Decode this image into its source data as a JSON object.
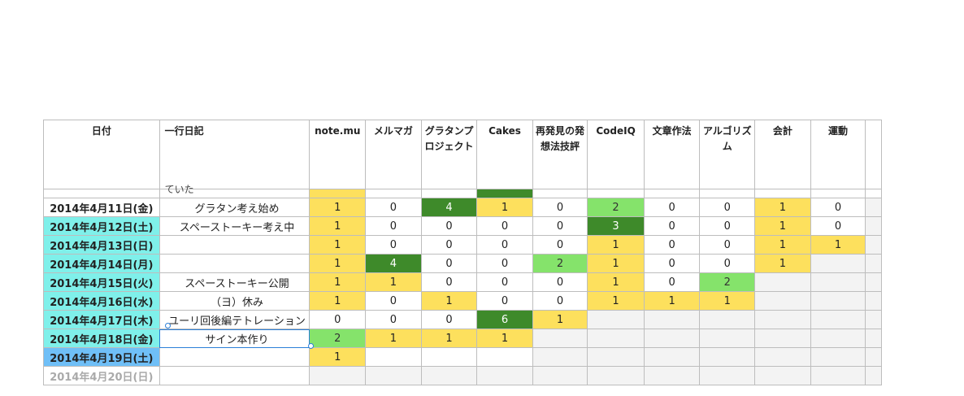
{
  "headers": [
    "日付",
    "一行日記",
    "note.mu",
    "メルマガ",
    "グラタンプロジェクト",
    "Cakes",
    "再発見の発想法技評",
    "CodeIQ",
    "文章作法",
    "アルゴリズム",
    "会計",
    "運動"
  ],
  "partial_row_text": "ていた",
  "rows": [
    {
      "date": "2014年4月11日(金)",
      "diary": "グラタン考え始め",
      "vals": [
        "1",
        "0",
        "4",
        "1",
        "0",
        "2",
        "0",
        "0",
        "1",
        "0"
      ]
    },
    {
      "date": "2014年4月12日(土)",
      "diary": "スペーストーキー考え中",
      "vals": [
        "1",
        "0",
        "0",
        "0",
        "0",
        "3",
        "0",
        "0",
        "1",
        "0"
      ]
    },
    {
      "date": "2014年4月13日(日)",
      "diary": "",
      "vals": [
        "1",
        "0",
        "0",
        "0",
        "0",
        "1",
        "0",
        "0",
        "1",
        "1"
      ]
    },
    {
      "date": "2014年4月14日(月)",
      "diary": "",
      "vals": [
        "1",
        "4",
        "0",
        "0",
        "2",
        "1",
        "0",
        "0",
        "1",
        ""
      ]
    },
    {
      "date": "2014年4月15日(火)",
      "diary": "スペーストーキー公開",
      "vals": [
        "1",
        "1",
        "0",
        "0",
        "0",
        "1",
        "0",
        "2",
        "",
        ""
      ]
    },
    {
      "date": "2014年4月16日(水)",
      "diary": "（ヨ）休み",
      "vals": [
        "1",
        "0",
        "1",
        "0",
        "0",
        "1",
        "1",
        "1",
        "",
        ""
      ]
    },
    {
      "date": "2014年4月17日(木)",
      "diary": "ユーリ回後編テトレーション",
      "vals": [
        "0",
        "0",
        "0",
        "6",
        "1",
        "",
        "",
        "",
        "",
        ""
      ]
    },
    {
      "date": "2014年4月18日(金)",
      "diary": "サイン本作り",
      "vals": [
        "2",
        "1",
        "1",
        "1",
        "",
        "",
        "",
        "",
        "",
        ""
      ]
    },
    {
      "date": "2014年4月19日(土)",
      "diary": "",
      "vals": [
        "1",
        "",
        "",
        "",
        "",
        "",
        "",
        "",
        "",
        ""
      ]
    },
    {
      "date": "2014年4月20日(日)",
      "diary": "",
      "vals": [
        "",
        "",
        "",
        "",
        "",
        "",
        "",
        "",
        "",
        ""
      ]
    }
  ],
  "colors": {
    "yellow": "#fde05d",
    "light_green": "#85e36b",
    "dark_green": "#3e8a2a",
    "cyan": "#7ff0ea",
    "blue": "#6fbff7",
    "gray": "#f3f3f3",
    "selection": "#2b7fd8"
  }
}
